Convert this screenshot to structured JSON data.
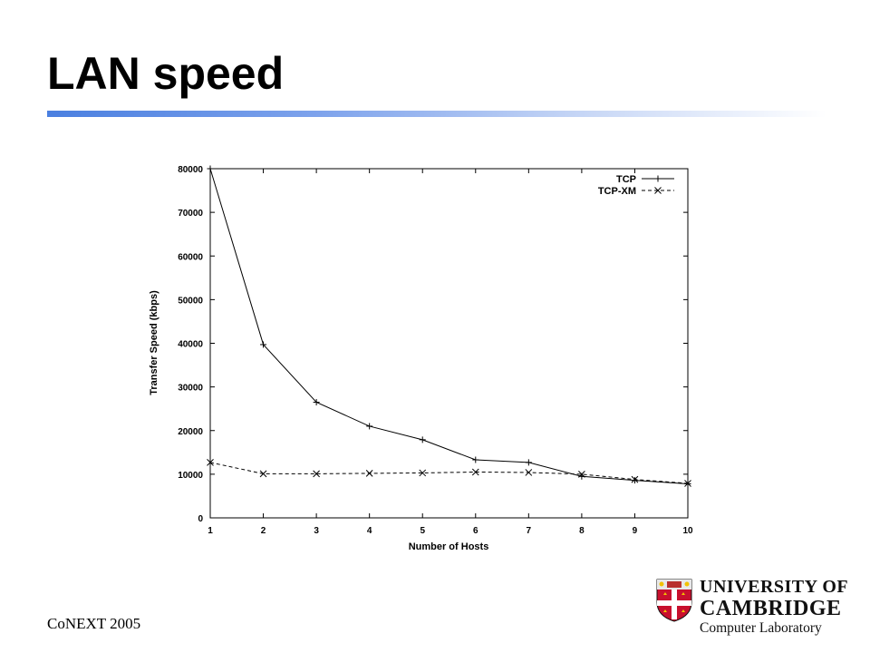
{
  "slide": {
    "title": "LAN speed",
    "footer": "CoNEXT 2005"
  },
  "logo": {
    "line1": "UNIVERSITY OF",
    "line2": "CAMBRIDGE",
    "line3": "Computer Laboratory",
    "crest_colors": {
      "shield": "#c8102e",
      "accent": "#f2c200",
      "cross": "#ffffff"
    }
  },
  "chart_data": {
    "type": "line",
    "title": "",
    "xlabel": "Number of Hosts",
    "ylabel": "Transfer Speed (kbps)",
    "x": [
      1,
      2,
      3,
      4,
      5,
      6,
      7,
      8,
      9,
      10
    ],
    "xlim": [
      1,
      10
    ],
    "ylim": [
      0,
      80000
    ],
    "xticks": [
      1,
      2,
      3,
      4,
      5,
      6,
      7,
      8,
      9,
      10
    ],
    "yticks": [
      0,
      10000,
      20000,
      30000,
      40000,
      50000,
      60000,
      70000,
      80000
    ],
    "grid": false,
    "legend_position": "top-right",
    "series": [
      {
        "name": "TCP",
        "values": [
          80000,
          39700,
          26500,
          21000,
          17900,
          13300,
          12700,
          9500,
          8600,
          7800
        ],
        "line_style": "solid",
        "marker": "plus"
      },
      {
        "name": "TCP-XM",
        "values": [
          12700,
          10100,
          10100,
          10200,
          10300,
          10500,
          10400,
          10000,
          8800,
          7900
        ],
        "line_style": "dashed",
        "marker": "cross"
      }
    ]
  }
}
